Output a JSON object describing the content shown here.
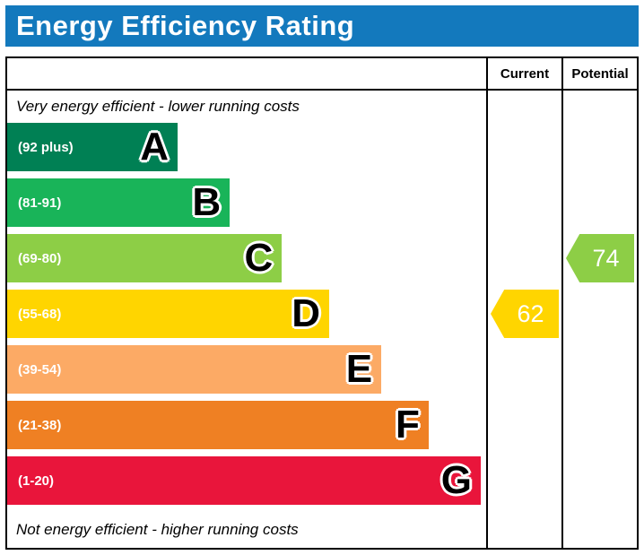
{
  "header": {
    "title": "Energy Efficiency Rating",
    "background": "#1379bd"
  },
  "columns": {
    "current_label": "Current",
    "potential_label": "Potential"
  },
  "captions": {
    "top": "Very energy efficient - lower running costs",
    "bottom": "Not energy efficient - higher running costs"
  },
  "chart_data": {
    "type": "bar",
    "title": "Energy Efficiency Rating",
    "bands": [
      {
        "letter": "A",
        "range": "(92 plus)",
        "color": "#008054",
        "width_pct": 36
      },
      {
        "letter": "B",
        "range": "(81-91)",
        "color": "#19b459",
        "width_pct": 47
      },
      {
        "letter": "C",
        "range": "(69-80)",
        "color": "#8dce46",
        "width_pct": 58
      },
      {
        "letter": "D",
        "range": "(55-68)",
        "color": "#ffd500",
        "width_pct": 68
      },
      {
        "letter": "E",
        "range": "(39-54)",
        "color": "#fcaa65",
        "width_pct": 79
      },
      {
        "letter": "F",
        "range": "(21-38)",
        "color": "#ef8023",
        "width_pct": 89
      },
      {
        "letter": "G",
        "range": "(1-20)",
        "color": "#e9153b",
        "width_pct": 100
      }
    ],
    "current": {
      "value": 62,
      "band": "D",
      "color": "#ffd500"
    },
    "potential": {
      "value": 74,
      "band": "C",
      "color": "#8dce46"
    }
  }
}
